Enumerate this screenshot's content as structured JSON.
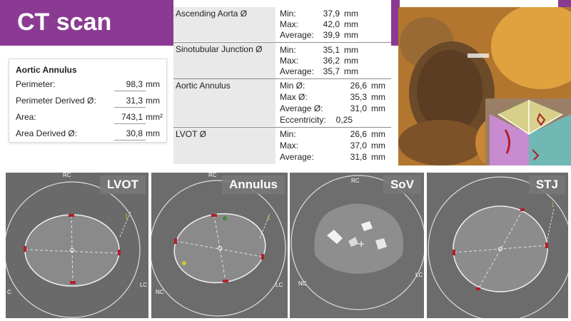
{
  "header": {
    "title": "CT scan",
    "accent": "#8b3a93"
  },
  "annulus_card": {
    "title": "Aortic Annulus",
    "rows": [
      {
        "label": "Perimeter:",
        "value": "98,3",
        "unit": "mm"
      },
      {
        "label": "Perimeter Derived Ø:",
        "value": "31,3",
        "unit": "mm"
      },
      {
        "label": "Area:",
        "value": "743,1",
        "unit": "mm²"
      },
      {
        "label": "Area Derived Ø:",
        "value": "30,8",
        "unit": "mm"
      }
    ]
  },
  "measurements": [
    {
      "name": "Ascending Aorta Ø",
      "lines": [
        {
          "k": "Min:",
          "v": "37,9",
          "u": "mm"
        },
        {
          "k": "Max:",
          "v": "42,0",
          "u": "mm"
        },
        {
          "k": "Average:",
          "v": "39,9",
          "u": "mm"
        }
      ]
    },
    {
      "name": "Sinotubular Junction Ø",
      "lines": [
        {
          "k": "Min:",
          "v": "35,1",
          "u": "mm"
        },
        {
          "k": "Max:",
          "v": "36,2",
          "u": "mm"
        },
        {
          "k": "Average:",
          "v": "35,7",
          "u": "mm"
        }
      ]
    },
    {
      "name": "Aortic Annulus",
      "lines": [
        {
          "k": "Min Ø:",
          "v": "26,6",
          "u": "mm"
        },
        {
          "k": "Max Ø:",
          "v": "35,3",
          "u": "mm"
        },
        {
          "k": "Average Ø:",
          "v": "31,0",
          "u": "mm"
        },
        {
          "k": "Eccentricity:",
          "v": "0,25",
          "u": ""
        }
      ]
    },
    {
      "name": "LVOT Ø",
      "lines": [
        {
          "k": "Min:",
          "v": "26,6",
          "u": "mm"
        },
        {
          "k": "Max:",
          "v": "37,0",
          "u": "mm"
        },
        {
          "k": "Average:",
          "v": "31,8",
          "u": "mm"
        }
      ]
    }
  ],
  "panels": [
    {
      "label": "LVOT",
      "tag_rc": "RC",
      "tag_lc": "LC",
      "tag_nc": "C",
      "tag_num": "1"
    },
    {
      "label": "Annulus",
      "tag_rc": "RC",
      "tag_lc": "LC",
      "tag_nc": "NC",
      "tag_num": "1"
    },
    {
      "label": "SoV",
      "tag_rc": "RC",
      "tag_lc": "LC",
      "tag_nc": "NC",
      "tag_num": ""
    },
    {
      "label": "STJ",
      "tag_rc": "",
      "tag_lc": "",
      "tag_nc": "",
      "tag_num": "1"
    }
  ],
  "colors": {
    "ct_gray": "#6c6c6c",
    "marker_red": "#b0202a",
    "marker_yellow": "#c8c83a",
    "leaflet_yellow": "#d6d08a",
    "leaflet_pink": "#c98bd0",
    "leaflet_teal": "#6fb8b4"
  }
}
